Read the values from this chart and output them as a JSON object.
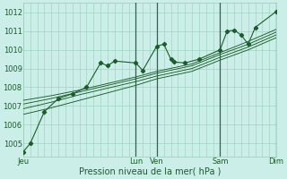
{
  "xlabel": "Pression niveau de la mer( hPa )",
  "bg_color": "#cceee8",
  "grid_color": "#99ccbb",
  "line_color": "#1a5c2a",
  "vline_color": "#2a6a3a",
  "ylim": [
    1004.3,
    1012.5
  ],
  "yticks": [
    1005,
    1006,
    1007,
    1008,
    1009,
    1010,
    1011,
    1012
  ],
  "xlim": [
    0,
    216
  ],
  "day_tick_positions": [
    0,
    96,
    114,
    168,
    216
  ],
  "day_labels": [
    "Jeu",
    "Lun",
    "Ven",
    "Sam",
    "Dim"
  ],
  "vline_positions": [
    96,
    114,
    168,
    216
  ],
  "series": [
    [
      0,
      1004.55,
      6,
      1005.0,
      18,
      1006.7,
      30,
      1007.4,
      42,
      1007.65,
      54,
      1008.0,
      66,
      1009.3,
      72,
      1009.15,
      78,
      1009.4,
      96,
      1009.3,
      102,
      1008.9,
      114,
      1010.2,
      120,
      1010.3,
      126,
      1009.5,
      129,
      1009.35,
      138,
      1009.3,
      150,
      1009.5,
      168,
      1010.0,
      174,
      1011.0,
      180,
      1011.05,
      186,
      1010.8,
      192,
      1010.3,
      198,
      1011.2,
      216,
      1012.05
    ],
    [
      0,
      1007.3,
      24,
      1007.55,
      48,
      1007.85,
      72,
      1008.2,
      96,
      1008.55,
      114,
      1008.85,
      144,
      1009.25,
      168,
      1009.85,
      192,
      1010.45,
      216,
      1011.1
    ],
    [
      0,
      1007.1,
      24,
      1007.4,
      48,
      1007.75,
      72,
      1008.1,
      96,
      1008.45,
      114,
      1008.75,
      144,
      1009.15,
      168,
      1009.75,
      192,
      1010.3,
      216,
      1010.95
    ],
    [
      0,
      1006.85,
      24,
      1007.2,
      48,
      1007.6,
      72,
      1007.95,
      96,
      1008.3,
      114,
      1008.6,
      144,
      1009.0,
      168,
      1009.6,
      192,
      1010.15,
      216,
      1010.8
    ],
    [
      0,
      1006.55,
      24,
      1006.9,
      48,
      1007.3,
      72,
      1007.7,
      96,
      1008.1,
      114,
      1008.45,
      144,
      1008.85,
      168,
      1009.45,
      192,
      1010.0,
      216,
      1010.65
    ]
  ],
  "marker_series": 0,
  "marker": "D",
  "markersize": 2.2,
  "linewidth_main": 0.8,
  "linewidth_other": 0.65,
  "tick_label_color": "#1a5c2a",
  "xlabel_fontsize": 7,
  "tick_fontsize": 6
}
